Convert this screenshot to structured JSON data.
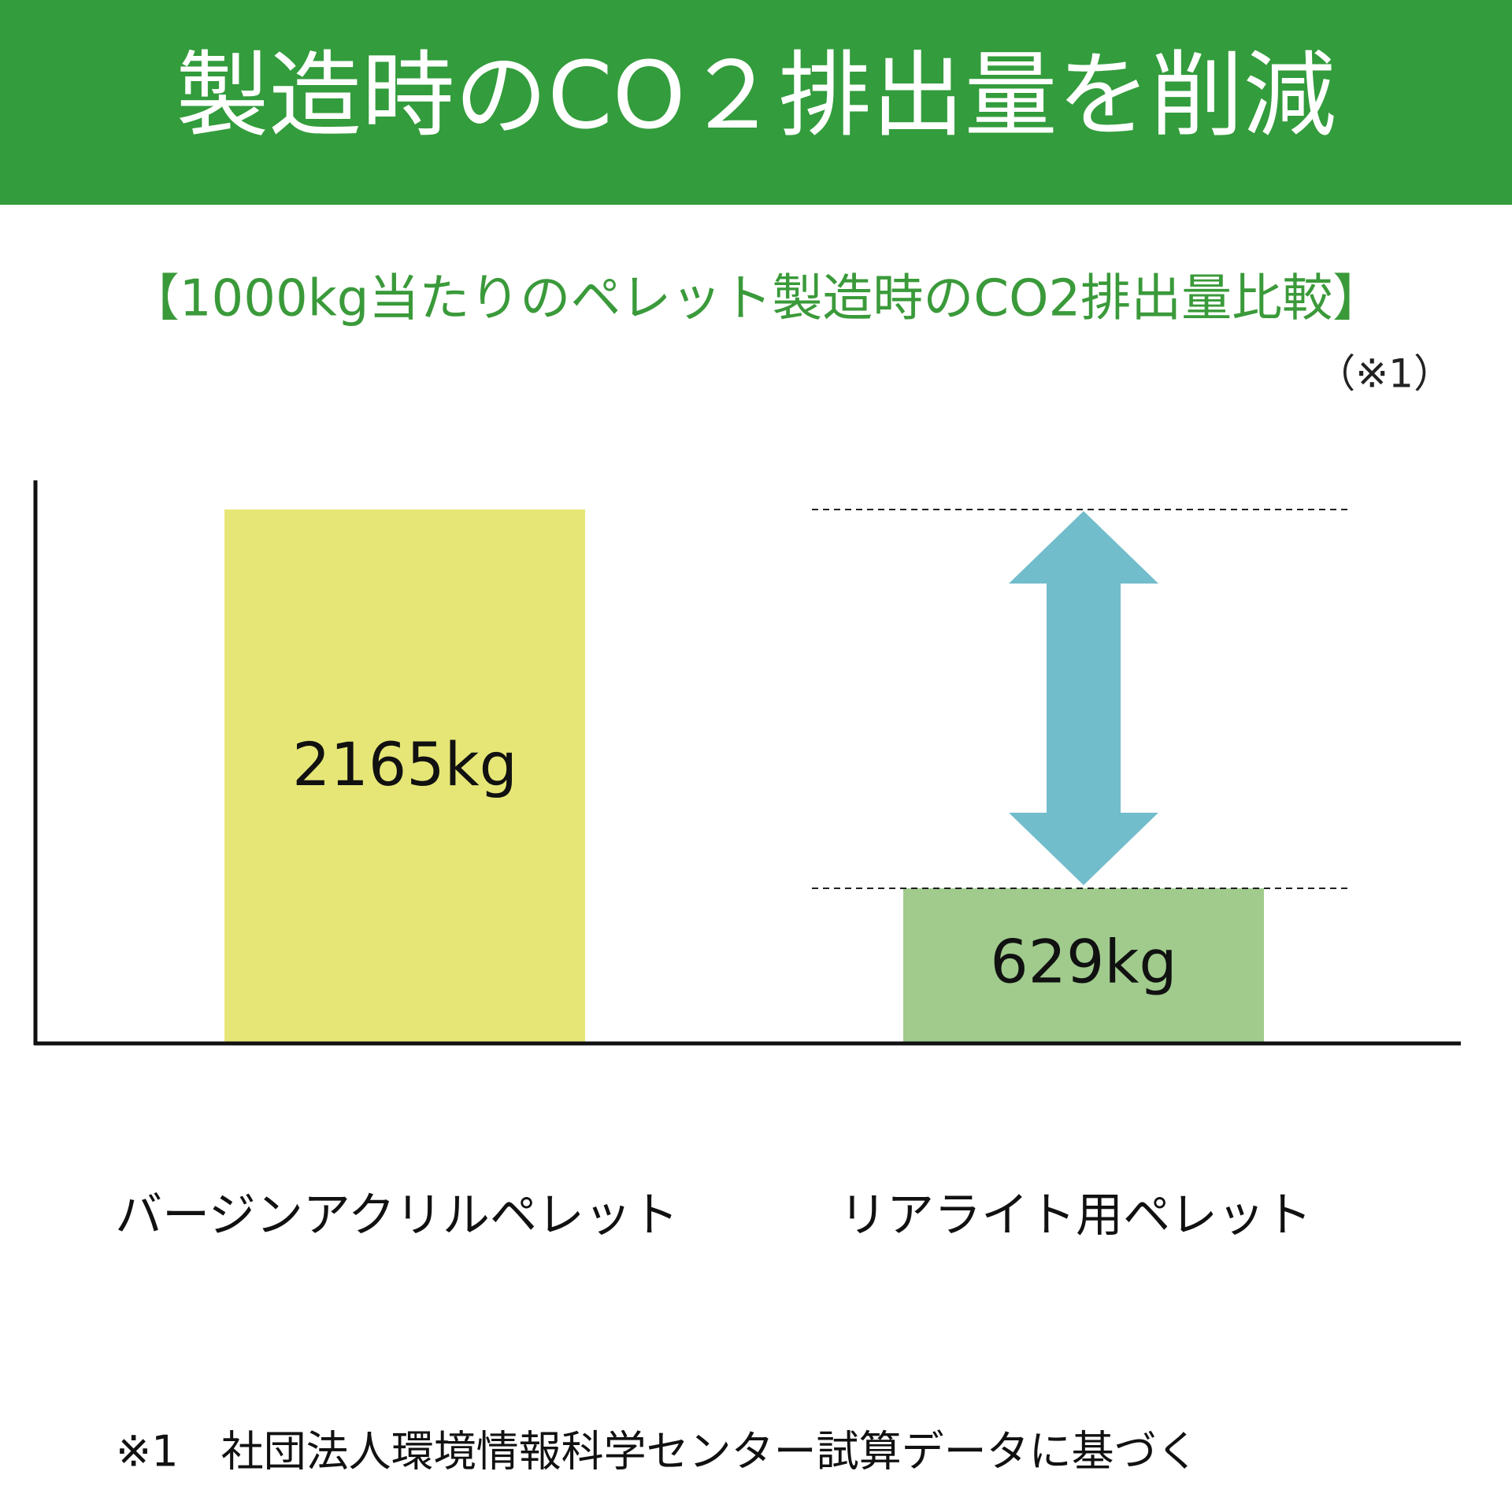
{
  "chart_data": {
    "type": "bar",
    "title": "製造時のCO２排出量を削減",
    "subtitle": "【1000kg当たりのペレット製造時のCO2排出量比較】",
    "note": "（※1）",
    "footnote": "※1　社団法人環境情報科学センター試算データに基づく",
    "categories": [
      "バージンアクリルペレット",
      "リアライト用ペレット"
    ],
    "values": [
      2165,
      629
    ],
    "value_labels": [
      "2165kg",
      "629kg"
    ],
    "colors": [
      "#e6e677",
      "#a0cb8d"
    ]
  }
}
